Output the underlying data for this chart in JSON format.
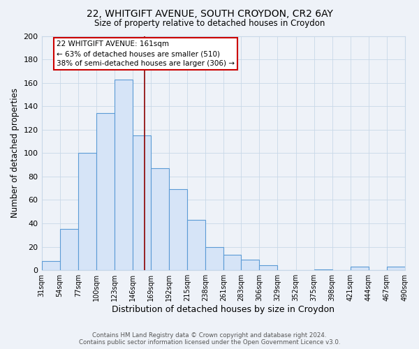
{
  "title": "22, WHITGIFT AVENUE, SOUTH CROYDON, CR2 6AY",
  "subtitle": "Size of property relative to detached houses in Croydon",
  "xlabel": "Distribution of detached houses by size in Croydon",
  "ylabel": "Number of detached properties",
  "footer_line1": "Contains HM Land Registry data © Crown copyright and database right 2024.",
  "footer_line2": "Contains public sector information licensed under the Open Government Licence v3.0.",
  "bins": [
    31,
    54,
    77,
    100,
    123,
    146,
    169,
    192,
    215,
    238,
    261,
    283,
    306,
    329,
    352,
    375,
    398,
    421,
    444,
    467,
    490
  ],
  "counts": [
    8,
    35,
    100,
    134,
    163,
    115,
    87,
    69,
    43,
    20,
    13,
    9,
    4,
    0,
    0,
    1,
    0,
    3,
    0,
    3
  ],
  "bar_face_color": "#d6e4f7",
  "bar_edge_color": "#5b9bd5",
  "grid_color": "#c8d8e8",
  "background_color": "#eef2f8",
  "vline_x": 161,
  "vline_color": "#8b0000",
  "annotation_text": "22 WHITGIFT AVENUE: 161sqm\n← 63% of detached houses are smaller (510)\n38% of semi-detached houses are larger (306) →",
  "annotation_box_color": "#ffffff",
  "annotation_box_edge": "#cc0000",
  "ylim": [
    0,
    200
  ],
  "yticks": [
    0,
    20,
    40,
    60,
    80,
    100,
    120,
    140,
    160,
    180,
    200
  ],
  "tick_labels": [
    "31sqm",
    "54sqm",
    "77sqm",
    "100sqm",
    "123sqm",
    "146sqm",
    "169sqm",
    "192sqm",
    "215sqm",
    "238sqm",
    "261sqm",
    "283sqm",
    "306sqm",
    "329sqm",
    "352sqm",
    "375sqm",
    "398sqm",
    "421sqm",
    "444sqm",
    "467sqm",
    "490sqm"
  ]
}
